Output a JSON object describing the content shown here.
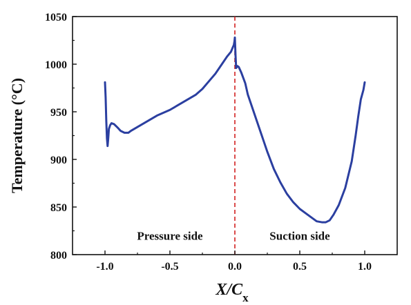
{
  "chart_data": {
    "type": "line",
    "title": "",
    "xlabel": "X/C",
    "xlabel_subscript": "x",
    "ylabel": "Temperature (°C)",
    "xlim": [
      -1.25,
      1.25
    ],
    "ylim": [
      800,
      1050
    ],
    "xticks": [
      -1.0,
      -0.5,
      0.0,
      0.5,
      1.0
    ],
    "xtick_labels": [
      "-1.0",
      "-0.5",
      "0.0",
      "0.5",
      "1.0"
    ],
    "yticks": [
      800,
      850,
      900,
      950,
      1000,
      1050
    ],
    "ytick_labels": [
      "800",
      "850",
      "900",
      "950",
      "1000",
      "1050"
    ],
    "grid": false,
    "legend": "none",
    "series": [
      {
        "color": "#2b3fa0",
        "x": [
          -1.0,
          -0.995,
          -0.99,
          -0.985,
          -0.98,
          -0.975,
          -0.97,
          -0.96,
          -0.95,
          -0.93,
          -0.9,
          -0.88,
          -0.85,
          -0.82,
          -0.8,
          -0.75,
          -0.7,
          -0.65,
          -0.6,
          -0.5,
          -0.4,
          -0.3,
          -0.25,
          -0.2,
          -0.15,
          -0.1,
          -0.06,
          -0.03,
          -0.015,
          -0.008,
          -0.003,
          0.0,
          0.005,
          0.01,
          0.02,
          0.03,
          0.05,
          0.08,
          0.1,
          0.15,
          0.2,
          0.25,
          0.3,
          0.35,
          0.4,
          0.45,
          0.5,
          0.55,
          0.6,
          0.63,
          0.67,
          0.7,
          0.73,
          0.76,
          0.8,
          0.85,
          0.9,
          0.93,
          0.95,
          0.97,
          0.99,
          1.0
        ],
        "y": [
          981,
          965,
          940,
          922,
          914,
          922,
          932,
          936,
          938,
          937,
          933,
          930,
          928,
          928,
          930,
          934,
          938,
          942,
          946,
          952,
          960,
          968,
          974,
          982,
          990,
          1000,
          1008,
          1013,
          1018,
          1020,
          1024,
          1028,
          1010,
          996,
          998,
          997,
          991,
          980,
          968,
          948,
          928,
          908,
          890,
          876,
          864,
          855,
          848,
          843,
          838,
          835,
          834,
          834,
          836,
          842,
          852,
          870,
          898,
          925,
          945,
          963,
          973,
          981
        ]
      }
    ],
    "reference_line": {
      "x": 0.0,
      "style": "dashed",
      "color": "#d21f1f"
    },
    "annotations": [
      {
        "text": "Pressure side",
        "x": -0.5,
        "y": 820
      },
      {
        "text": "Suction side",
        "x": 0.5,
        "y": 820
      }
    ]
  }
}
